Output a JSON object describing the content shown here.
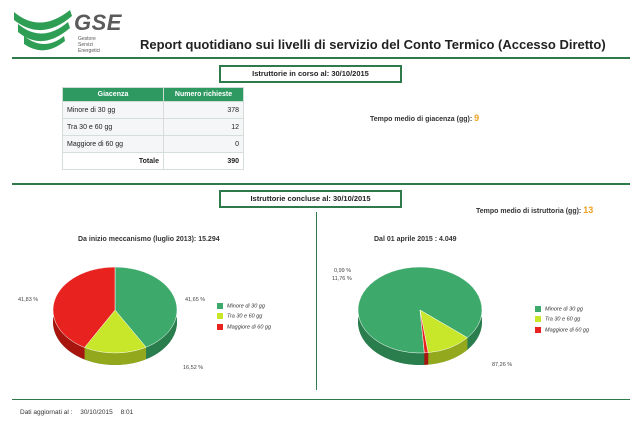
{
  "logo": {
    "text": "GSE",
    "sub": [
      "Gestore",
      "Servizi",
      "Energetici"
    ]
  },
  "title": "Report quotidiano sui livelli di servizio del Conto Termico (Accesso Diretto)",
  "section1": {
    "header": "Istruttorie in corso al: 30/10/2015",
    "table": {
      "headers": [
        "Giacenza",
        "Numero richieste"
      ],
      "rows": [
        {
          "label": "Minore di 30 gg",
          "value": "378"
        },
        {
          "label": "Tra 30 e 60 gg",
          "value": "12"
        },
        {
          "label": "Maggiore di 60 gg",
          "value": "0"
        }
      ],
      "total_label": "Totale",
      "total_value": "390"
    },
    "tempo_label": "Tempo medio di giacenza (gg):",
    "tempo_value": "9"
  },
  "section2": {
    "header": "Istruttorie concluse al: 30/10/2015",
    "tempo_label": "Tempo medio di istruttoria (gg):",
    "tempo_value": "13"
  },
  "colors": {
    "green": "#3daa6c",
    "yellow": "#c8e62a",
    "red": "#e8231f"
  },
  "chart_data": [
    {
      "type": "pie",
      "title": "Da inizio meccanismo (luglio 2013): 15.294",
      "categories": [
        "Minore di 30 gg",
        "Tra 30 e 60 gg",
        "Maggiore di 60 gg"
      ],
      "values": [
        41.65,
        16.52,
        41.83
      ],
      "labels": [
        "41,65 %",
        "16,52 %",
        "41,83 %"
      ],
      "legend": "right"
    },
    {
      "type": "pie",
      "title": "Dal 01 aprile 2015 : 4.049",
      "categories": [
        "Minore di 30 gg",
        "Tra 30 e 60 gg",
        "Maggiore di 60 gg"
      ],
      "values": [
        87.26,
        11.76,
        0.99
      ],
      "labels": [
        "87,26 %",
        "11,76 %",
        "0,99 %"
      ],
      "legend": "right"
    }
  ],
  "footer": {
    "label": "Dati aggiornati al :",
    "date": "30/10/2015",
    "time": "8:01"
  }
}
